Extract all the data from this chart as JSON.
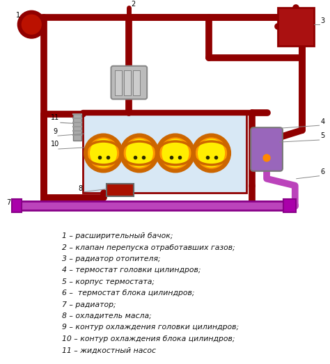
{
  "bg_color": "#ffffff",
  "pipe_color": "#900000",
  "purple_color": "#BB44BB",
  "purple_bright": "#CC55CC",
  "yellow_cyl": "#FFEE00",
  "orange_ring": "#DD7700",
  "legend_items": [
    "1 – расширительный бачок;",
    "2 – клапан перепуска отработавших газов;",
    "3 – радиатор отопителя;",
    "4 – термостат головки цилиндров;",
    "5 – корпус термостата;",
    "6 –  термостат блока цилиндров;",
    "7 – радиатор;",
    "8 – охладитель масла;",
    "9 – контур охлаждения головки цилиндров;",
    "10 – контур охлаждения блока цилиндров;",
    "11 – жидкостный насос"
  ],
  "figsize": [
    4.74,
    5.23
  ],
  "dpi": 100
}
